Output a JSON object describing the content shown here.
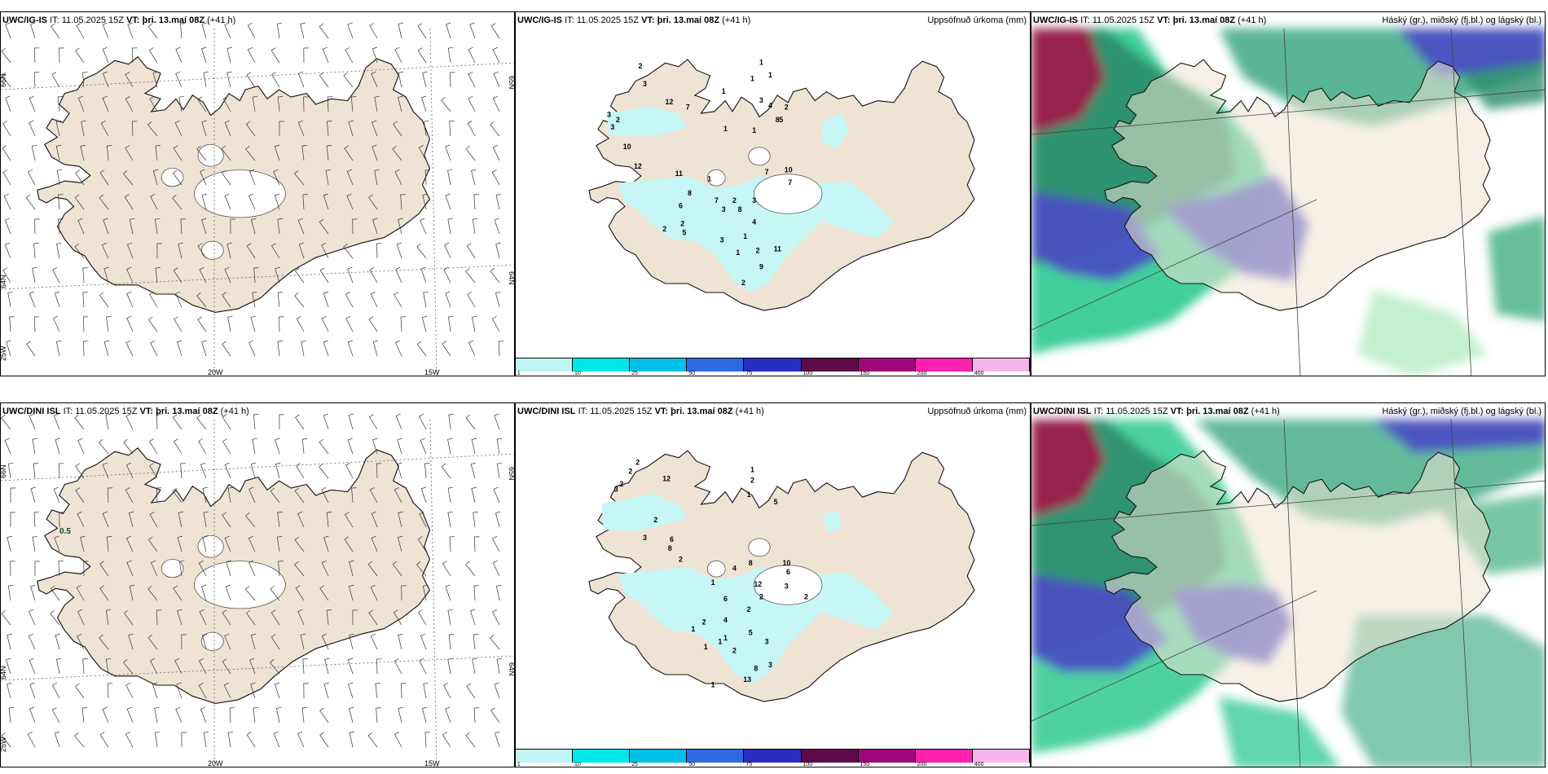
{
  "rows": [
    {
      "model": "UWC/IG-IS",
      "it_label": "IT:",
      "it_value": "11.05.2025 15Z",
      "vt_label": "VT:",
      "vt_value": "þri. 13.maí 08Z",
      "lead": "(+41 h)"
    },
    {
      "model": "UWC/DINI ISL",
      "it_label": "IT:",
      "it_value": "11.05.2025 15Z",
      "vt_label": "VT:",
      "vt_value": "þri. 13.maí 08Z",
      "lead": "(+41 h)"
    }
  ],
  "precip_title": "Uppsöfnuð úrkoma (mm)",
  "cloud_title": "Háský (gr.), miðský (fj.bl.) og lágský (bl.)",
  "wind_axis": {
    "lat_66": "66N",
    "lat_64": "64N",
    "lon_25": "25W",
    "lon_20": "20W",
    "lon_15": "15W",
    "lat_65_right": "65N",
    "lat_64_right": "64N"
  },
  "wind_annotation_bottom": "0.5",
  "colorbar": {
    "ticks": [
      "1",
      "10",
      "25",
      "50",
      "75",
      "100",
      "150",
      "200",
      "400"
    ],
    "colors": [
      "#bff5f5",
      "#00e8ea",
      "#00c0e8",
      "#2f6be0",
      "#2a2ec0",
      "#5c0a4a",
      "#a0087a",
      "#ff22b0",
      "#f7b5ee"
    ]
  },
  "precip_labels_top": [
    "2",
    "3",
    "12",
    "7",
    "3",
    "2",
    "3",
    "1",
    "1",
    "1",
    "1",
    "3",
    "4",
    "2",
    "5",
    "1",
    "8",
    "1",
    "10",
    "7",
    "7",
    "3",
    "1",
    "8",
    "10",
    "12",
    "11",
    "7",
    "2",
    "8",
    "6",
    "3",
    "2",
    "5",
    "2",
    "4",
    "1",
    "3",
    "2",
    "1",
    "9",
    "2",
    "11"
  ],
  "precip_labels_bottom": [
    "2",
    "2",
    "12",
    "2",
    "3",
    "1",
    "2",
    "1",
    "5",
    "2",
    "3",
    "6",
    "8",
    "2",
    "8",
    "4",
    "1",
    "10",
    "6",
    "12",
    "3",
    "2",
    "2",
    "6",
    "1",
    "2",
    "2",
    "4",
    "5",
    "3",
    "1",
    "2",
    "1",
    "1",
    "8",
    "3",
    "13",
    "1"
  ],
  "colors": {
    "land": "#efe3d3",
    "precip_light": "#c4f7f7",
    "cloud_high": "#a3174a",
    "cloud_mid": "#4a4bc4",
    "cloud_low": "#1ec58a",
    "cloud_low_pale": "#bfeec9"
  }
}
